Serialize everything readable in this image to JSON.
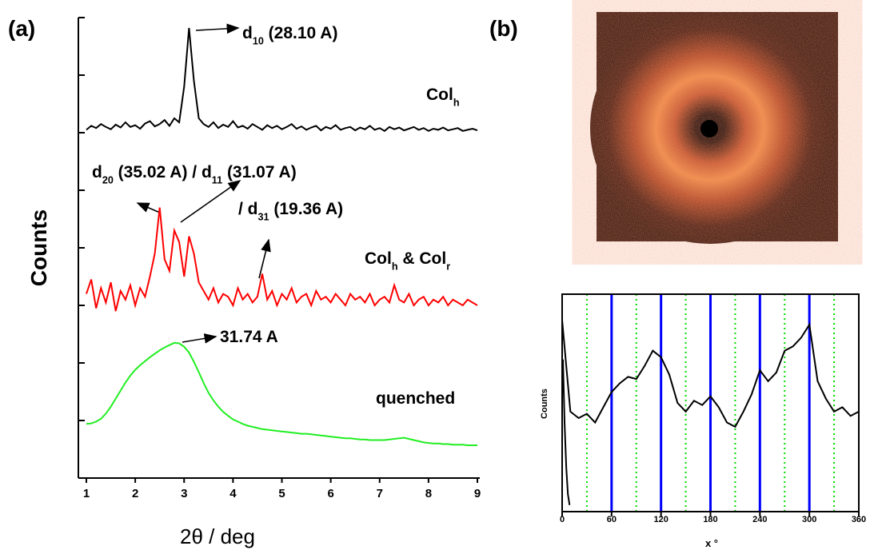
{
  "chart_data": [
    {
      "type": "line",
      "panel_label": "(a)",
      "xlabel": "2θ / deg",
      "ylabel": "Counts",
      "xlim": [
        1,
        9
      ],
      "xticks": [
        1,
        2,
        3,
        4,
        5,
        6,
        7,
        8,
        9
      ],
      "ylim": [
        0,
        8
      ],
      "yticks": [
        0,
        1,
        2,
        3,
        4,
        5,
        6,
        7,
        8
      ],
      "x": [
        1,
        1.1,
        1.2,
        1.3,
        1.4,
        1.5,
        1.6,
        1.7,
        1.8,
        1.9,
        2,
        2.1,
        2.2,
        2.3,
        2.4,
        2.5,
        2.6,
        2.7,
        2.8,
        2.9,
        3,
        3.1,
        3.2,
        3.3,
        3.4,
        3.5,
        3.6,
        3.7,
        3.8,
        3.9,
        4,
        4.1,
        4.2,
        4.3,
        4.4,
        4.5,
        4.6,
        4.7,
        4.8,
        4.9,
        5,
        5.1,
        5.2,
        5.3,
        5.4,
        5.5,
        5.6,
        5.7,
        5.8,
        5.9,
        6,
        6.1,
        6.2,
        6.3,
        6.4,
        6.5,
        6.6,
        6.7,
        6.8,
        6.9,
        7,
        7.1,
        7.2,
        7.3,
        7.4,
        7.5,
        7.6,
        7.7,
        7.8,
        7.9,
        8,
        8.1,
        8.2,
        8.3,
        8.4,
        8.5,
        8.6,
        8.7,
        8.8,
        8.9,
        9
      ],
      "series": [
        {
          "color": "#000000",
          "label": [
            {
              "t": "Col"
            },
            {
              "t": "h",
              "sub": true
            }
          ],
          "values": [
            6.05,
            6.12,
            6.08,
            6.15,
            6.1,
            6.06,
            6.14,
            6.09,
            6.18,
            6.1,
            6.13,
            6.07,
            6.16,
            6.2,
            6.11,
            6.15,
            6.22,
            6.12,
            6.25,
            6.18,
            6.8,
            7.82,
            6.9,
            6.25,
            6.15,
            6.1,
            6.18,
            6.08,
            6.14,
            6.1,
            6.2,
            6.09,
            6.12,
            6.07,
            6.15,
            6.1,
            6.05,
            6.13,
            6.08,
            6.12,
            6.06,
            6.1,
            6.15,
            6.07,
            6.11,
            6.05,
            6.09,
            6.12,
            6.04,
            6.1,
            6.07,
            6.13,
            6.05,
            6.08,
            6.1,
            6.04,
            6.09,
            6.06,
            6.12,
            6.05,
            6.08,
            6.03,
            6.1,
            6.06,
            6.09,
            6.04,
            6.07,
            6.1,
            6.05,
            6.08,
            6.03,
            6.07,
            6.05,
            6.09,
            6.04,
            6.06,
            6.08,
            6.03,
            6.05,
            6.07,
            6.04
          ]
        },
        {
          "color": "#ff0000",
          "label": [
            {
              "t": "Col"
            },
            {
              "t": "h",
              "sub": true
            },
            {
              "t": " & Col"
            },
            {
              "t": "r",
              "sub": true
            }
          ],
          "values": [
            3.2,
            3.45,
            2.95,
            3.3,
            3.05,
            3.4,
            2.9,
            3.25,
            3.1,
            3.35,
            3.0,
            3.3,
            3.15,
            3.5,
            3.9,
            4.7,
            3.8,
            3.6,
            4.3,
            4.1,
            3.5,
            4.2,
            3.9,
            3.4,
            3.25,
            3.1,
            3.3,
            3.05,
            3.2,
            3.15,
            3.0,
            3.3,
            3.1,
            3.2,
            3.05,
            3.15,
            3.55,
            3.1,
            3.25,
            3.0,
            3.2,
            3.1,
            3.3,
            3.05,
            3.15,
            3.2,
            3.0,
            3.25,
            3.1,
            3.15,
            3.05,
            3.2,
            3.1,
            3.0,
            3.2,
            3.1,
            3.15,
            3.05,
            3.2,
            3.0,
            3.1,
            3.15,
            3.05,
            3.35,
            3.1,
            3.05,
            3.2,
            3.0,
            3.1,
            3.15,
            3.0,
            3.1,
            3.05,
            3.15,
            3.0,
            3.1,
            3.05,
            3.0,
            3.1,
            3.05,
            3.0
          ]
        },
        {
          "color": "#22ee22",
          "label": [
            {
              "t": "quenched"
            }
          ],
          "values": [
            0.94,
            0.95,
            0.98,
            1.03,
            1.12,
            1.24,
            1.38,
            1.52,
            1.66,
            1.78,
            1.88,
            1.96,
            2.03,
            2.1,
            2.16,
            2.22,
            2.27,
            2.31,
            2.35,
            2.34,
            2.28,
            2.18,
            2.02,
            1.84,
            1.65,
            1.48,
            1.35,
            1.24,
            1.15,
            1.08,
            1.02,
            0.98,
            0.94,
            0.91,
            0.89,
            0.87,
            0.85,
            0.84,
            0.83,
            0.82,
            0.81,
            0.8,
            0.79,
            0.78,
            0.77,
            0.77,
            0.76,
            0.75,
            0.74,
            0.73,
            0.72,
            0.71,
            0.7,
            0.69,
            0.69,
            0.68,
            0.67,
            0.67,
            0.66,
            0.66,
            0.66,
            0.66,
            0.67,
            0.68,
            0.69,
            0.7,
            0.68,
            0.66,
            0.64,
            0.62,
            0.61,
            0.6,
            0.6,
            0.59,
            0.59,
            0.58,
            0.58,
            0.58,
            0.57,
            0.57,
            0.57
          ]
        }
      ],
      "annotations": [
        [
          {
            "t": "d"
          },
          {
            "t": "10",
            "sub": true
          },
          {
            "t": " (28.10 A)"
          }
        ],
        [
          {
            "t": "d"
          },
          {
            "t": "20",
            "sub": true
          },
          {
            "t": " (35.02 A) / d"
          },
          {
            "t": "11",
            "sub": true
          },
          {
            "t": " (31.07 A)"
          }
        ],
        [
          {
            "t": "/ d"
          },
          {
            "t": "31",
            "sub": true
          },
          {
            "t": " (19.36 A)"
          }
        ],
        [
          {
            "t": "31.74 A"
          }
        ]
      ]
    },
    {
      "type": "line",
      "panel_label": "(b)",
      "xlabel": "x °",
      "ylabel": "Counts",
      "xlim": [
        0,
        360
      ],
      "xticks": [
        0,
        60,
        120,
        180,
        240,
        300,
        360
      ],
      "ylim": [
        0,
        10
      ],
      "reference_lines": [
        {
          "color": "#0000ff",
          "style": "solid",
          "x": [
            60,
            120,
            180,
            240,
            300
          ]
        },
        {
          "color": "#00dd00",
          "style": "dotted",
          "x": [
            30,
            90,
            150,
            210,
            270,
            330
          ]
        }
      ],
      "series": [
        {
          "color": "#000000",
          "x": [
            0,
            10,
            20,
            30,
            40,
            50,
            60,
            70,
            80,
            90,
            100,
            110,
            120,
            130,
            140,
            150,
            160,
            170,
            180,
            190,
            200,
            210,
            220,
            230,
            240,
            250,
            260,
            270,
            280,
            290,
            300,
            310,
            320,
            330,
            340,
            350,
            360
          ],
          "values": [
            8.8,
            4.6,
            4.3,
            4.5,
            4.1,
            4.8,
            5.5,
            5.9,
            6.2,
            6.1,
            6.7,
            7.4,
            7.1,
            6.3,
            5.0,
            4.6,
            5.1,
            4.9,
            5.3,
            4.8,
            4.1,
            3.9,
            4.6,
            5.4,
            6.5,
            6.0,
            6.4,
            7.4,
            7.6,
            8.0,
            8.6,
            6.0,
            5.2,
            4.6,
            4.8,
            4.4,
            4.6
          ]
        },
        {
          "color": "#000000",
          "x": [
            1,
            3,
            5,
            7,
            9
          ],
          "values": [
            7,
            4,
            2,
            0.8,
            0.3
          ]
        }
      ]
    }
  ]
}
